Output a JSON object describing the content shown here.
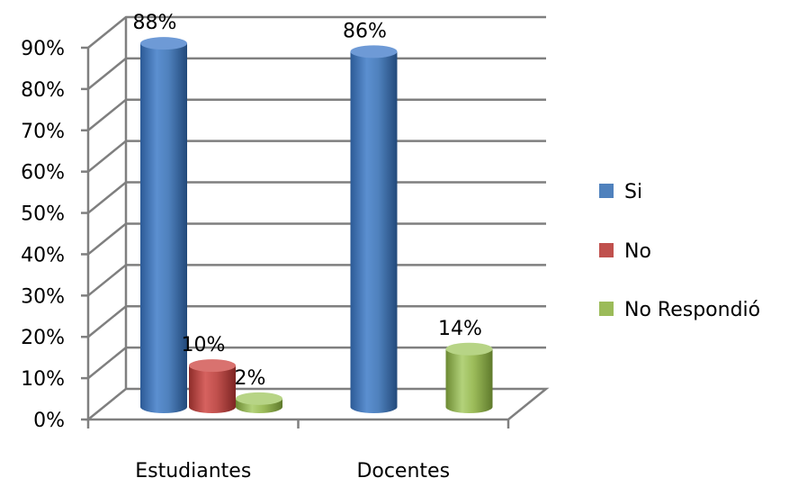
{
  "chart_data": {
    "type": "bar",
    "style": "3d-cylinder",
    "categories": [
      "Estudiantes",
      "Docentes"
    ],
    "series": [
      {
        "name": "Si",
        "color": "#4f81bd",
        "values": [
          88,
          86
        ],
        "labels": [
          "88%",
          "86%"
        ]
      },
      {
        "name": "No",
        "color": "#c0504d",
        "values": [
          10,
          null
        ],
        "labels": [
          "10%",
          ""
        ]
      },
      {
        "name": "No Respondió",
        "color": "#9bbb59",
        "values": [
          2,
          14
        ],
        "labels": [
          "2%",
          "14%"
        ]
      }
    ],
    "yticks": [
      "0%",
      "10%",
      "20%",
      "30%",
      "40%",
      "50%",
      "60%",
      "70%",
      "80%",
      "90%"
    ],
    "ylim": [
      0,
      90
    ],
    "grid": true,
    "legend_position": "right",
    "title": "",
    "xlabel": "",
    "ylabel": ""
  }
}
